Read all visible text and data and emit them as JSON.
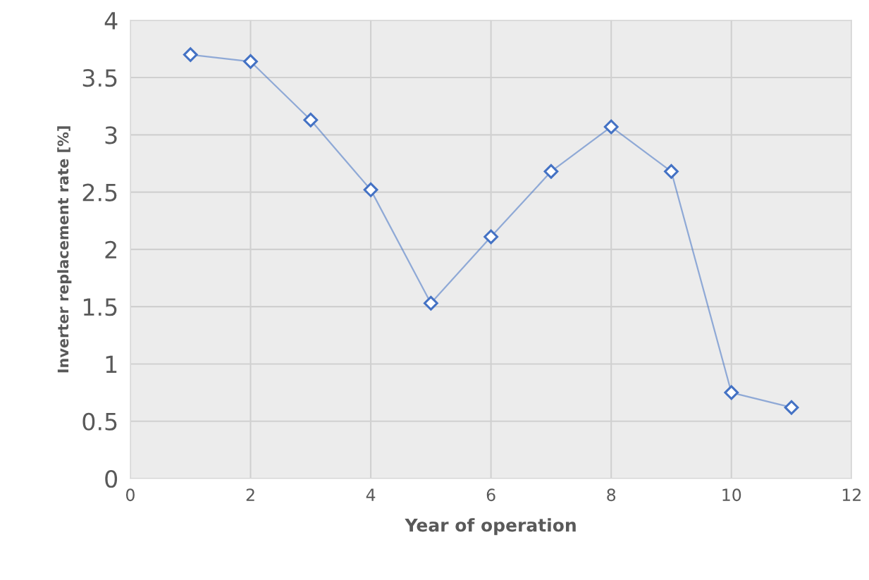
{
  "chart_data": {
    "type": "line",
    "xlabel": "Year of operation",
    "ylabel": "Inverter replacement rate [%]",
    "x": [
      1,
      2,
      3,
      4,
      5,
      6,
      7,
      8,
      9,
      10,
      11
    ],
    "series": [
      {
        "color": "#4472c4",
        "values": [
          3.7,
          3.64,
          3.13,
          2.52,
          1.53,
          2.11,
          2.68,
          3.07,
          2.68,
          0.75,
          0.62
        ]
      }
    ],
    "xlim": [
      0,
      12
    ],
    "xticks": [
      0,
      2,
      4,
      6,
      8,
      10,
      12
    ],
    "ylim": [
      0,
      4
    ],
    "yticks": [
      0,
      0.5,
      1,
      1.5,
      2,
      2.5,
      3,
      3.5,
      4
    ],
    "grid": true,
    "marker": "diamond",
    "line_style": "solid"
  }
}
